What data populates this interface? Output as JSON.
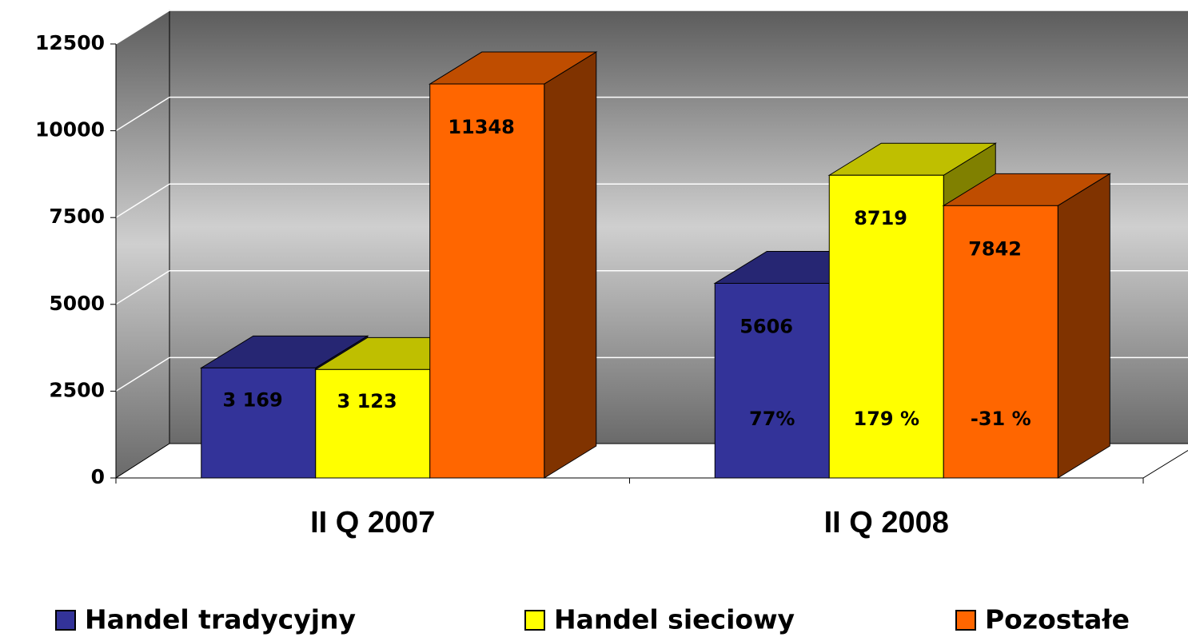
{
  "chart_data": {
    "type": "bar3d",
    "categories": [
      "II Q 2007",
      "II Q 2008"
    ],
    "series": [
      {
        "name": "Handel tradycyjny",
        "color": "#333399",
        "values": [
          3169,
          5606
        ],
        "value_labels": [
          "3 169",
          "5606"
        ]
      },
      {
        "name": "Handel sieciowy",
        "color": "#ffff00",
        "values": [
          3123,
          8719
        ],
        "value_labels": [
          "3 123",
          "8719"
        ]
      },
      {
        "name": "Pozostałe",
        "color": "#ff6600",
        "values": [
          11348,
          7842
        ],
        "value_labels": [
          "11348",
          "7842"
        ]
      }
    ],
    "annotations": [
      "77%",
      "179 %",
      "-31 %"
    ],
    "ylim": [
      0,
      12500
    ],
    "yticks": [
      0,
      2500,
      5000,
      7500,
      10000,
      12500
    ],
    "grid": true,
    "legend": "bottom"
  }
}
